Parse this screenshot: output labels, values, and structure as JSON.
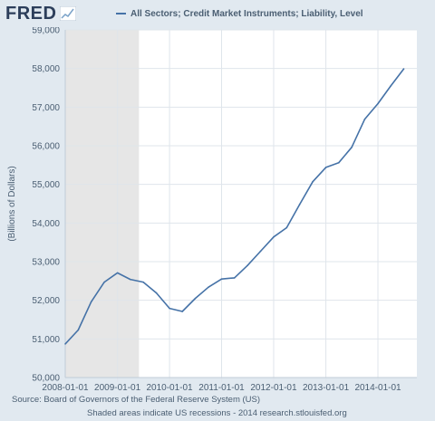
{
  "header": {
    "logo_text": "FRED",
    "logo_icon": "trend-line-icon"
  },
  "colors": {
    "series_line": "#4572a7",
    "recession_shade": "#e6e6e6",
    "plot_background": "#ffffff",
    "page_background": "#e1e9f0",
    "grid": "#dfe5eb",
    "text": "#4a5e72",
    "logo": "#2c3e5a"
  },
  "footer": {
    "source": "Source: Board of Governors of the Federal Reserve System (US)",
    "recession_note": "Shaded areas indicate US recessions - 2014 research.stlouisfed.org"
  },
  "chart_data": {
    "type": "line",
    "title": "",
    "xlabel": "",
    "ylabel": "(Billions of Dollars)",
    "xlim": [
      "2008-01-01",
      "2014-10-01"
    ],
    "ylim": [
      50000,
      59000
    ],
    "y_ticks": [
      50000,
      51000,
      52000,
      53000,
      54000,
      55000,
      56000,
      57000,
      58000,
      59000
    ],
    "y_tick_labels": [
      "50,000",
      "51,000",
      "52,000",
      "53,000",
      "54,000",
      "55,000",
      "56,000",
      "57,000",
      "58,000",
      "59,000"
    ],
    "x_ticks": [
      "2008-01-01",
      "2009-01-01",
      "2010-01-01",
      "2011-01-01",
      "2012-01-01",
      "2013-01-01",
      "2014-01-01"
    ],
    "x_tick_labels": [
      "2008-01-01",
      "2009-01-01",
      "2010-01-01",
      "2011-01-01",
      "2012-01-01",
      "2013-01-01",
      "2014-01-01"
    ],
    "grid": true,
    "legend_position": "top",
    "recessions": [
      {
        "start": "2008-01-01",
        "end": "2009-06-01"
      }
    ],
    "series": [
      {
        "name": "All Sectors; Credit Market Instruments; Liability, Level",
        "x": [
          "2008-01-01",
          "2008-04-01",
          "2008-07-01",
          "2008-10-01",
          "2009-01-01",
          "2009-04-01",
          "2009-07-01",
          "2009-10-01",
          "2010-01-01",
          "2010-04-01",
          "2010-07-01",
          "2010-10-01",
          "2011-01-01",
          "2011-04-01",
          "2011-07-01",
          "2011-10-01",
          "2012-01-01",
          "2012-04-01",
          "2012-07-01",
          "2012-10-01",
          "2013-01-01",
          "2013-04-01",
          "2013-07-01",
          "2013-10-01",
          "2014-01-01",
          "2014-04-01",
          "2014-07-01"
        ],
        "values": [
          50870,
          51230,
          51960,
          52470,
          52710,
          52540,
          52470,
          52190,
          51790,
          51710,
          52050,
          52340,
          52550,
          52580,
          52900,
          53270,
          53640,
          53880,
          54480,
          55070,
          55440,
          55560,
          55960,
          56690,
          57090,
          57550,
          57990
        ]
      }
    ]
  }
}
